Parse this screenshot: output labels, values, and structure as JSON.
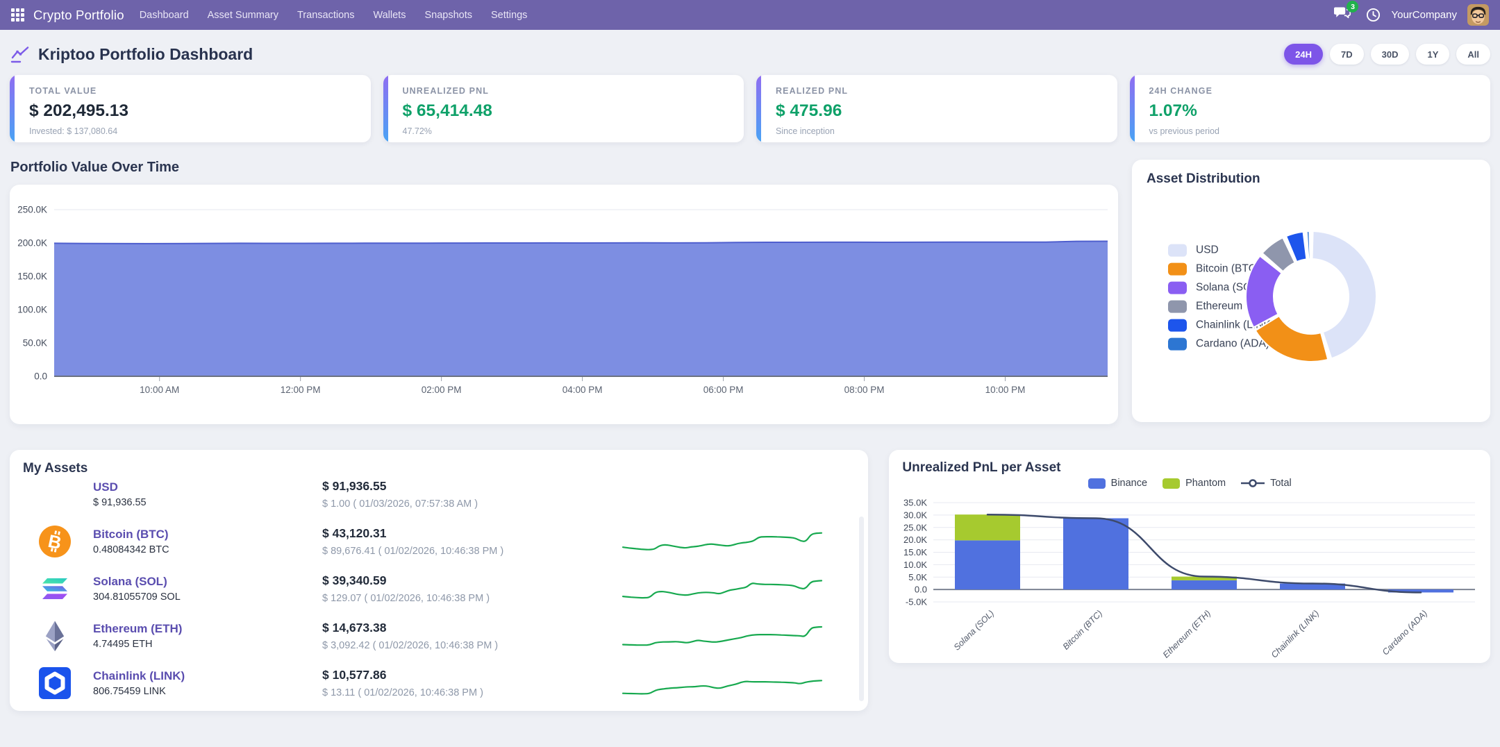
{
  "navbar": {
    "brand": "Crypto Portfolio",
    "items": [
      "Dashboard",
      "Asset Summary",
      "Transactions",
      "Wallets",
      "Snapshots",
      "Settings"
    ],
    "chat_badge": "3",
    "company": "YourCompany"
  },
  "header": {
    "title": "Kriptoo Portfolio Dashboard",
    "ranges": [
      {
        "label": "24H",
        "active": true
      },
      {
        "label": "7D",
        "active": false
      },
      {
        "label": "30D",
        "active": false
      },
      {
        "label": "1Y",
        "active": false
      },
      {
        "label": "All",
        "active": false
      }
    ]
  },
  "stats": [
    {
      "label": "TOTAL VALUE",
      "value": "$ 202,495.13",
      "sub": "Invested: $ 137,080.64",
      "green": false
    },
    {
      "label": "UNREALIZED PNL",
      "value": "$ 65,414.48",
      "sub": "47.72%",
      "green": true
    },
    {
      "label": "REALIZED PNL",
      "value": "$ 475.96",
      "sub": "Since inception",
      "green": true
    },
    {
      "label": "24H CHANGE",
      "value": "1.07%",
      "sub": "vs previous period",
      "green": true
    }
  ],
  "assets": {
    "section_title": "My Assets",
    "rows": [
      {
        "icon": "usd",
        "name": "USD",
        "amount": "$ 91,936.55",
        "value": "$ 91,936.55",
        "price": "$ 1.00 ( 01/03/2026, 07:57:38 AM )",
        "spark": []
      },
      {
        "icon": "btc",
        "name": "Bitcoin (BTC)",
        "amount": "0.48084342 BTC",
        "value": "$ 43,120.31",
        "price": "$ 89,676.41 ( 01/02/2026, 10:46:38 PM )",
        "spark": [
          30,
          27,
          25,
          23,
          21,
          20,
          22,
          36,
          40,
          37,
          33,
          29,
          27,
          31,
          33,
          36,
          41,
          43,
          40,
          37,
          35,
          38,
          45,
          48,
          50,
          55,
          70,
          72,
          72,
          72,
          71,
          70,
          69,
          66,
          55,
          52,
          82,
          86,
          87
        ]
      },
      {
        "icon": "sol",
        "name": "Solana (SOL)",
        "amount": "304.81055709 SOL",
        "value": "$ 39,340.59",
        "price": "$ 129.07 ( 01/02/2026, 10:46:38 PM )",
        "spark": [
          22,
          20,
          18,
          17,
          16,
          18,
          38,
          42,
          40,
          36,
          31,
          28,
          27,
          32,
          36,
          38,
          38,
          36,
          32,
          40,
          48,
          50,
          55,
          58,
          76,
          72,
          70,
          70,
          70,
          69,
          68,
          67,
          64,
          54,
          52,
          80,
          84,
          85
        ]
      },
      {
        "icon": "eth",
        "name": "Ethereum (ETH)",
        "amount": "4.74495 ETH",
        "value": "$ 14,673.38",
        "price": "$ 3,092.42 ( 01/02/2026, 10:46:38 PM )",
        "spark": [
          18,
          17,
          17,
          16,
          16,
          17,
          26,
          28,
          29,
          29,
          30,
          28,
          25,
          30,
          36,
          32,
          30,
          28,
          30,
          34,
          38,
          42,
          46,
          52,
          56,
          58,
          58,
          58,
          58,
          57,
          56,
          55,
          54,
          53,
          50,
          84,
          88,
          89
        ]
      },
      {
        "icon": "link",
        "name": "Chainlink (LINK)",
        "amount": "806.75459 LINK",
        "value": "$ 10,577.86",
        "price": "$ 13.11 ( 01/02/2026, 10:46:38 PM )",
        "spark": [
          12,
          11,
          11,
          10,
          10,
          11,
          24,
          28,
          31,
          33,
          34,
          36,
          38,
          38,
          40,
          42,
          40,
          34,
          32,
          38,
          44,
          48,
          56,
          60,
          58,
          58,
          58,
          58,
          57,
          57,
          56,
          55,
          54,
          50,
          56,
          60,
          62,
          63
        ]
      }
    ]
  },
  "chart_data": [
    {
      "type": "area",
      "title": "Portfolio Value Over Time",
      "xlabel": "",
      "ylabel": "",
      "ylim": [
        0,
        250000
      ],
      "grid": true,
      "legend": false,
      "fill_color": "#7D8EE2",
      "line_color": "#4F5FCE",
      "y_ticks": [
        {
          "v": 0,
          "label": "0.0"
        },
        {
          "v": 50000,
          "label": "50.0K"
        },
        {
          "v": 100000,
          "label": "100.0K"
        },
        {
          "v": 150000,
          "label": "150.0K"
        },
        {
          "v": 200000,
          "label": "200.0K"
        },
        {
          "v": 250000,
          "label": "250.0K"
        }
      ],
      "x_ticks": [
        "10:00 AM",
        "12:00 PM",
        "02:00 PM",
        "04:00 PM",
        "06:00 PM",
        "08:00 PM",
        "10:00 PM"
      ],
      "series": [
        {
          "name": "Portfolio Value",
          "values": [
            199600,
            199250,
            199050,
            198950,
            199100,
            199400,
            199600,
            199500,
            199450,
            199600,
            199700,
            199800,
            199800,
            199900,
            200000,
            200050,
            200100,
            200050,
            200150,
            200200,
            200150,
            200250,
            200800,
            201000,
            201050,
            201100,
            201100,
            201050,
            201100,
            201200,
            201200,
            201300,
            201250,
            202500,
            202650
          ]
        }
      ]
    },
    {
      "type": "pie",
      "title": "Asset Distribution",
      "donut": true,
      "legend_position": "left",
      "labels": [
        "USD",
        "Bitcoin (BTC)",
        "Solana (SOL)",
        "Ethereum (ETH)",
        "Chainlink (LINK)",
        "Cardano (ADA)"
      ],
      "values": [
        45.4,
        21.3,
        19.4,
        7.2,
        5.2,
        1.5
      ],
      "colors": [
        "#DCE3F8",
        "#F29017",
        "#8A5EF2",
        "#8F96AC",
        "#1D55EC",
        "#2D76D2"
      ]
    },
    {
      "type": "bar",
      "title": "Unrealized PnL per Asset",
      "stacked": true,
      "legend_position": "top",
      "ylim": [
        -5000,
        35000
      ],
      "categories": [
        "Solana (SOL)",
        "Bitcoin (BTC)",
        "Ethereum (ETH)",
        "Chainlink (LINK)",
        "Cardano (ADA)"
      ],
      "y_ticks": [
        {
          "v": 35000,
          "label": "35.0K"
        },
        {
          "v": 30000,
          "label": "30.0K"
        },
        {
          "v": 25000,
          "label": "25.0K"
        },
        {
          "v": 20000,
          "label": "20.0K"
        },
        {
          "v": 15000,
          "label": "15.0K"
        },
        {
          "v": 10000,
          "label": "10.0K"
        },
        {
          "v": 5000,
          "label": "5.0K"
        },
        {
          "v": 0,
          "label": "0.0"
        },
        {
          "v": -5000,
          "label": "-5.0K"
        }
      ],
      "series": [
        {
          "name": "Binance",
          "color": "#5071DF",
          "values": [
            19800,
            28700,
            3700,
            2400,
            -1200
          ]
        },
        {
          "name": "Phantom",
          "color": "#A6CA2F",
          "values": [
            10400,
            0,
            1500,
            0,
            0
          ]
        }
      ],
      "line_series": {
        "name": "Total",
        "color": "#3D4A6B",
        "values": [
          30200,
          28700,
          5200,
          2400,
          -1200
        ]
      }
    }
  ],
  "colors": {
    "navbar": "#6E63AA",
    "page_bg": "#EEF0F5",
    "accent_gradient_top": "#8F6DF2",
    "accent_gradient_bottom": "#49A3F4",
    "active_pill": "#7D55E8",
    "positive_green": "#0FA169",
    "sparkline_green": "#17A94F",
    "asset_link_purple": "#5A4DAF"
  }
}
